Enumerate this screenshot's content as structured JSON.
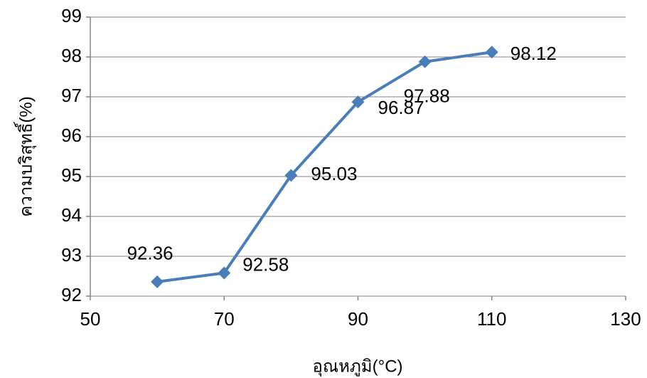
{
  "chart_data": {
    "type": "line",
    "x_label": "อุณหภูมิ(°C)",
    "y_label": "ความบริสุทธิ์(%)",
    "x": [
      60,
      70,
      80,
      90,
      100,
      110
    ],
    "series": [
      {
        "color": "#4a7ebb",
        "values": [
          92.36,
          92.58,
          95.03,
          96.87,
          97.88,
          98.12
        ]
      }
    ],
    "xlim": [
      50,
      130
    ],
    "xticks": [
      50,
      70,
      90,
      110,
      130
    ],
    "ylim": [
      92,
      99
    ],
    "yticks": [
      92,
      93,
      94,
      95,
      96,
      97,
      98,
      99
    ],
    "grid": true
  }
}
